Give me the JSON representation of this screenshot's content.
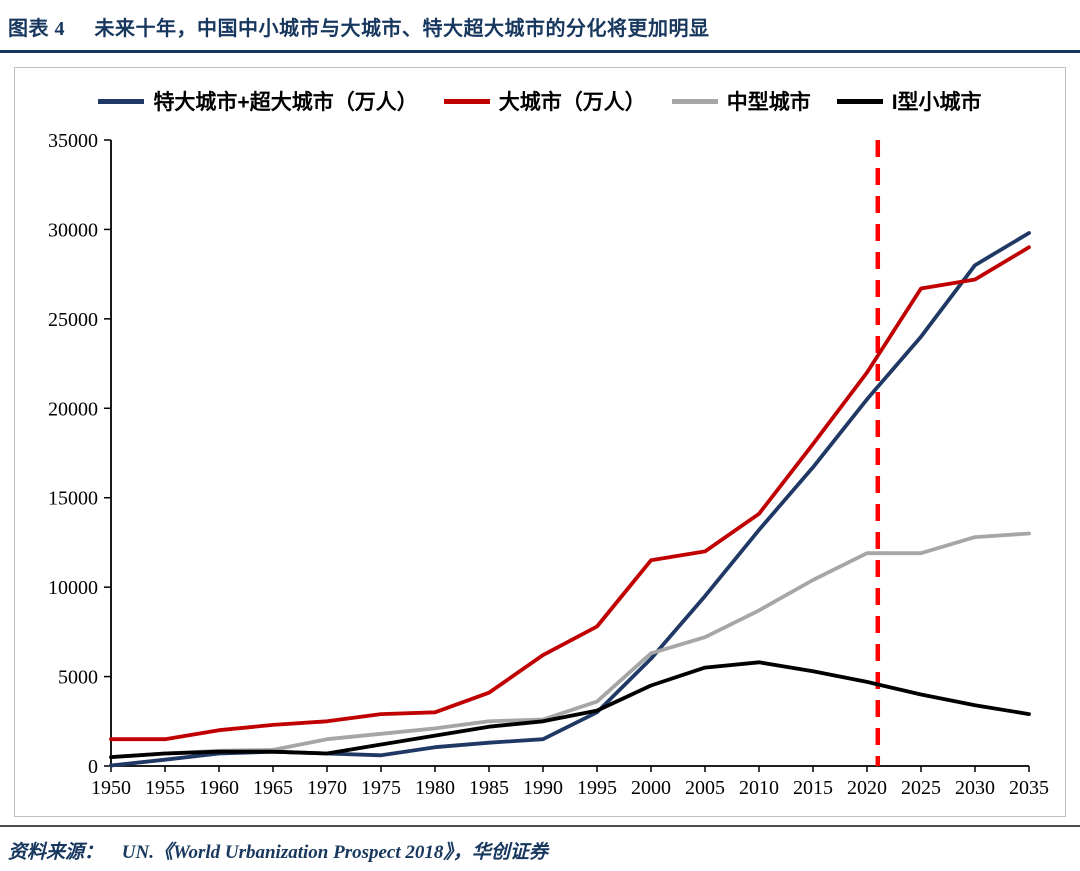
{
  "header": {
    "figure_label": "图表 4",
    "title": "未来十年，中国中小城市与大城市、特大超大城市的分化将更加明显"
  },
  "footer": {
    "source_label": "资料来源：",
    "source_text": "UN.《World Urbanization Prospect 2018》，华创证券"
  },
  "colors": {
    "title_navy": "#17375E",
    "series_navy": "#1F3864",
    "series_red": "#C00000",
    "series_gray": "#A6A6A6",
    "series_black": "#000000",
    "forecast_divider": "#FF0000",
    "frame_border": "#C0C0C0"
  },
  "chart_data": {
    "type": "line",
    "x": [
      1950,
      1955,
      1960,
      1965,
      1970,
      1975,
      1980,
      1985,
      1990,
      1995,
      2000,
      2005,
      2010,
      2015,
      2020,
      2025,
      2030,
      2035
    ],
    "series": [
      {
        "name": "特大城市+超大城市（万人）",
        "color": "#1F3864",
        "values": [
          30,
          350,
          700,
          800,
          700,
          600,
          1050,
          1300,
          1500,
          3000,
          6000,
          9500,
          13200,
          16700,
          20500,
          24000,
          28000,
          29800
        ]
      },
      {
        "name": "大城市（万人）",
        "color": "#C00000",
        "values": [
          1500,
          1500,
          2000,
          2300,
          2500,
          2900,
          3000,
          4100,
          6200,
          7800,
          11500,
          12000,
          14100,
          18000,
          22000,
          26700,
          27200,
          29000
        ]
      },
      {
        "name": "中型城市",
        "color": "#A6A6A6",
        "values": [
          500,
          700,
          850,
          900,
          1500,
          1800,
          2100,
          2500,
          2600,
          3600,
          6300,
          7200,
          8700,
          10400,
          11900,
          11900,
          12800,
          13000
        ]
      },
      {
        "name": "I型小城市",
        "color": "#000000",
        "values": [
          500,
          700,
          800,
          800,
          700,
          1200,
          1700,
          2200,
          2500,
          3100,
          4500,
          5500,
          5800,
          5300,
          4700,
          4000,
          3400,
          2900
        ]
      }
    ],
    "ylim": [
      0,
      35000
    ],
    "ytick_step": 5000,
    "yticks": [
      0,
      5000,
      10000,
      15000,
      20000,
      25000,
      30000,
      35000
    ],
    "vline_x": 2021,
    "vline_color": "#FF0000",
    "vline_style": "dashed",
    "legend_position": "top",
    "grid": false,
    "xlabel": "",
    "ylabel": ""
  }
}
